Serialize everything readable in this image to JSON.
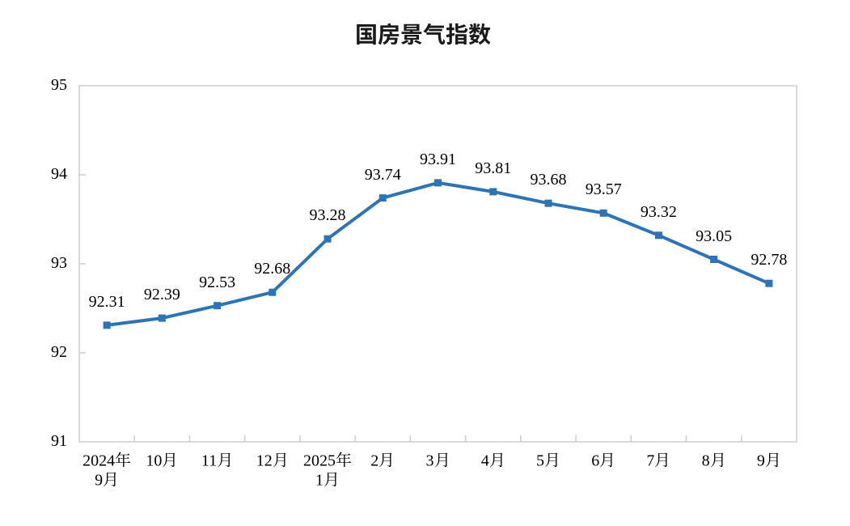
{
  "page": {
    "background": "#FFFFFF"
  },
  "chart_data": {
    "type": "line",
    "title": "国房景气指数",
    "categories": [
      "2024年\n9月",
      "10月",
      "11月",
      "12月",
      "2025年\n1月",
      "2月",
      "3月",
      "4月",
      "5月",
      "6月",
      "7月",
      "8月",
      "9月"
    ],
    "series": [
      {
        "name": "国房景气指数",
        "values": [
          92.31,
          92.39,
          92.53,
          92.68,
          93.28,
          93.74,
          93.91,
          93.81,
          93.68,
          93.57,
          93.32,
          93.05,
          92.78
        ]
      }
    ],
    "data_labels": [
      "92.31",
      "92.39",
      "92.53",
      "92.68",
      "93.28",
      "93.74",
      "93.91",
      "93.81",
      "93.68",
      "93.57",
      "93.32",
      "93.05",
      "92.78"
    ],
    "xlabel": "",
    "ylabel": "",
    "ylim": [
      91,
      95
    ],
    "yticks": [
      95,
      94,
      93,
      92,
      91
    ],
    "grid": false,
    "legend": false,
    "marker": "square",
    "colors": {
      "line": "#2E74B5",
      "marker": "#2E74B5",
      "axis": "#D0D0D0",
      "text": "#000000",
      "title": "#1A1A1A",
      "background": "#FFFFFF"
    }
  }
}
